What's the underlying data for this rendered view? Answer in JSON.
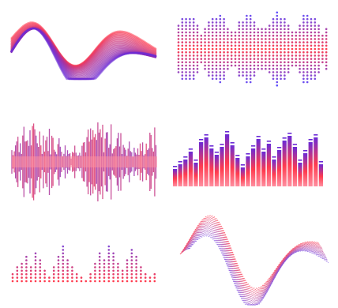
{
  "colors": {
    "red": "#ff3b4e",
    "pink": "#ff8fa0",
    "purple": "#6a2ad6",
    "violet": "#7a4ae0",
    "lavender": "#b49ae8"
  },
  "panels": [
    {
      "name": "wave-ribbon",
      "style": "stacked-ribbon"
    },
    {
      "name": "dot-equalizer",
      "style": "dot-matrix-mirrored"
    },
    {
      "name": "audio-waveform",
      "style": "dense-bars"
    },
    {
      "name": "bar-equalizer",
      "style": "gradient-bars"
    },
    {
      "name": "dot-histogram",
      "style": "dot-matrix-up"
    },
    {
      "name": "wave-mesh",
      "style": "3d-mesh"
    }
  ]
}
